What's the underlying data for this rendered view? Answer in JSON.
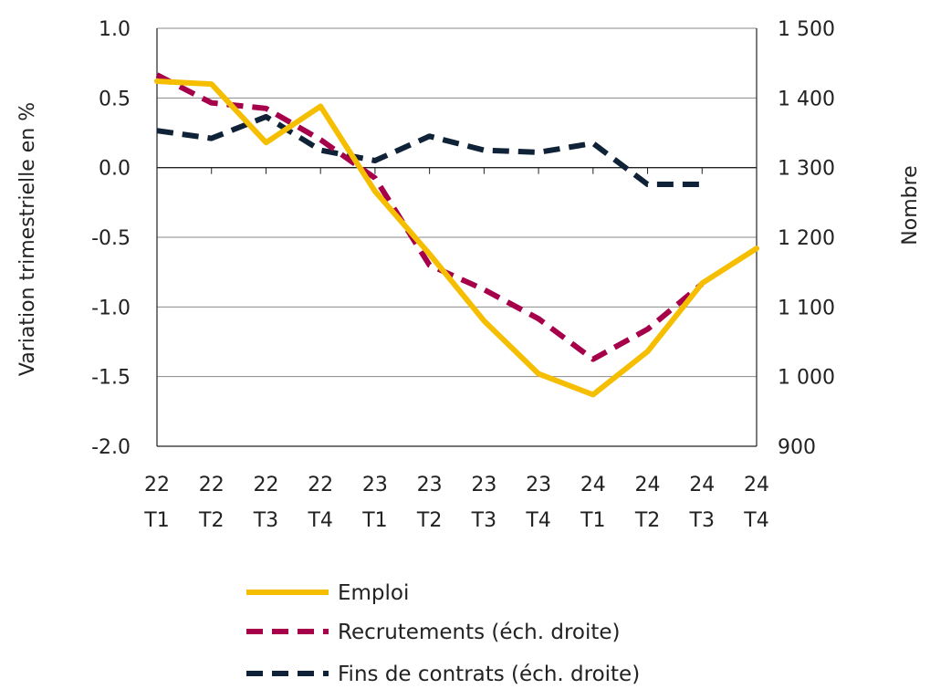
{
  "chart_data": {
    "type": "line",
    "categories": [
      [
        "22",
        "T1"
      ],
      [
        "22",
        "T2"
      ],
      [
        "22",
        "T3"
      ],
      [
        "22",
        "T4"
      ],
      [
        "23",
        "T1"
      ],
      [
        "23",
        "T2"
      ],
      [
        "23",
        "T3"
      ],
      [
        "23",
        "T4"
      ],
      [
        "24",
        "T1"
      ],
      [
        "24",
        "T2"
      ],
      [
        "24",
        "T3"
      ],
      [
        "24",
        "T4"
      ]
    ],
    "ylabel": "Variation trimestrielle en %",
    "y2label": "Nombre",
    "ylim": [
      -2.0,
      1.0
    ],
    "y2lim": [
      900,
      1500
    ],
    "yticks": [
      "1.0",
      "0.5",
      "0.0",
      "-0.5",
      "-1.0",
      "-1.5",
      "-2.0"
    ],
    "yticks_values": [
      1.0,
      0.5,
      0.0,
      -0.5,
      -1.0,
      -1.5,
      -2.0
    ],
    "y2ticks": [
      "1 500",
      "1 400",
      "1 300",
      "1 200",
      "1 100",
      "1 000",
      "900"
    ],
    "y2ticks_values": [
      1500,
      1400,
      1300,
      1200,
      1100,
      1000,
      900
    ],
    "grid": "horizontal",
    "legend_position": "bottom",
    "series": [
      {
        "name": "Emploi",
        "axis": "left",
        "style": "solid",
        "color": "#F6BE00",
        "values": [
          0.62,
          0.6,
          0.18,
          0.44,
          -0.17,
          -0.62,
          -1.1,
          -1.48,
          -1.63,
          -1.32,
          -0.83,
          -0.58
        ]
      },
      {
        "name": "Recrutements (éch. droite)",
        "axis": "right",
        "style": "dashed",
        "color": "#A6004B",
        "values": [
          1433,
          1393,
          1385,
          1340,
          1285,
          1160,
          1125,
          1083,
          1025,
          1068,
          1133,
          null
        ]
      },
      {
        "name": "Fins de contrats (éch. droite)",
        "axis": "right",
        "style": "dashed",
        "color": "#0F2237",
        "values": [
          1353,
          1342,
          1373,
          1325,
          1310,
          1345,
          1325,
          1322,
          1335,
          1276,
          1276,
          null
        ]
      }
    ]
  }
}
